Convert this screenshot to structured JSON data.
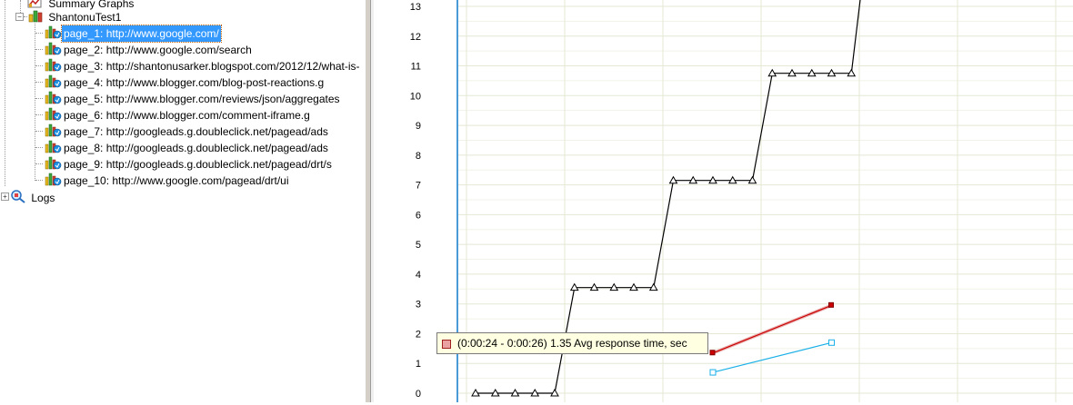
{
  "tree": {
    "summary_label": "Summary Graphs",
    "test_label": "ShantonuTest1",
    "logs_label": "Logs",
    "pages": [
      {
        "label": "page_1: http://www.google.com/",
        "selected": true
      },
      {
        "label": "page_2: http://www.google.com/search"
      },
      {
        "label": "page_3: http://shantonusarker.blogspot.com/2012/12/what-is-"
      },
      {
        "label": "page_4: http://www.blogger.com/blog-post-reactions.g"
      },
      {
        "label": "page_5: http://www.blogger.com/reviews/json/aggregates"
      },
      {
        "label": "page_6: http://www.blogger.com/comment-iframe.g"
      },
      {
        "label": "page_7: http://googleads.g.doubleclick.net/pagead/ads"
      },
      {
        "label": "page_8: http://googleads.g.doubleclick.net/pagead/ads"
      },
      {
        "label": "page_9: http://googleads.g.doubleclick.net/pagead/drt/s"
      },
      {
        "label": "page_10: http://www.google.com/pagead/drt/ui"
      }
    ]
  },
  "tooltip": {
    "text": "(0:00:24 - 0:00:26) 1.35 Avg response time, sec"
  },
  "chart_data": {
    "type": "line",
    "ylim": [
      0,
      13
    ],
    "y_ticks": [
      "0",
      "1",
      "2",
      "3",
      "4",
      "5",
      "6",
      "7",
      "8",
      "9",
      "10",
      "11",
      "12",
      "13"
    ],
    "series": [
      {
        "color": "#000000",
        "marker": "triangle",
        "x": [
          1,
          2,
          3,
          4,
          5,
          6,
          7,
          8,
          9,
          10,
          11,
          12,
          13,
          14,
          15,
          16,
          17,
          18,
          19,
          20
        ],
        "values": [
          0,
          0,
          0,
          0,
          0,
          3.55,
          3.55,
          3.55,
          3.55,
          3.55,
          7.15,
          7.15,
          7.15,
          7.15,
          7.15,
          10.75,
          10.75,
          10.75,
          10.75,
          10.75
        ],
        "extends_to": {
          "x": 20.5,
          "y": 13.5
        }
      },
      {
        "color": "#cc0000",
        "marker": "square",
        "x": [
          13,
          19
        ],
        "values": [
          1.35,
          2.95
        ]
      },
      {
        "color": "#1ab0e8",
        "marker": "square-hollow",
        "x": [
          13,
          19
        ],
        "values": [
          0.7,
          1.7
        ]
      }
    ]
  },
  "colors": {
    "selection": "#3399ff",
    "grid": "#e4e8d4",
    "axis": "#4a9ad8",
    "tooltip_bg": "#ffffe1"
  }
}
